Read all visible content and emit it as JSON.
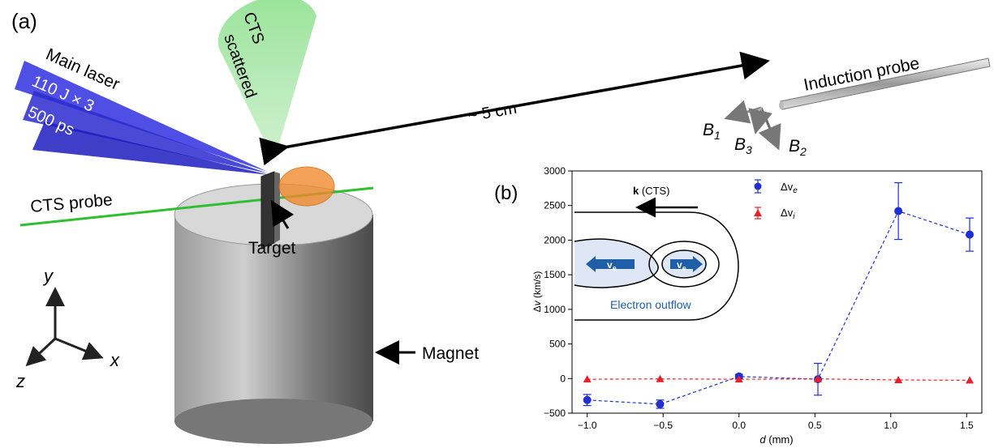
{
  "panel_a": {
    "label": "(a)",
    "main_laser": "Main laser",
    "laser_energy": "110 J × 3",
    "laser_duration": "500 ps",
    "cts_scattered_1": "CTS",
    "cts_scattered_2": "scattered",
    "distance": "~ 5 cm",
    "induction_probe": "Induction probe",
    "b1": "B",
    "b1_sub": "1",
    "b2": "B",
    "b2_sub": "2",
    "b3": "B",
    "b3_sub": "3",
    "cts_probe": "CTS probe",
    "target": "Target",
    "magnet": "Magnet",
    "axis_x": "x",
    "axis_y": "y",
    "axis_z": "z"
  },
  "panel_b": {
    "label": "(b)",
    "inset_k": "k",
    "inset_k_suffix": " (CTS)",
    "inset_ve": "v",
    "inset_ve_sub": "e",
    "inset_outflow": "Electron outflow",
    "legend_e": "Δv",
    "legend_e_sub": "e",
    "legend_i": "Δv",
    "legend_i_sub": "i",
    "ylabel_prefix": "Δ",
    "ylabel_var": "v",
    "ylabel_unit": " (km/s)",
    "xlabel_var": "d",
    "xlabel_unit": " (mm)"
  },
  "colors": {
    "electron": "#1f2fd0",
    "ion": "#e8202a",
    "laser": "#1f2fd0",
    "cts_cone": "#5fd35f",
    "plasma": "#f08a2c"
  },
  "chart_data": {
    "type": "scatter",
    "xlabel": "d (mm)",
    "ylabel": "Δv (km/s)",
    "xlim": [
      -1.1,
      1.6
    ],
    "ylim": [
      -500,
      3000
    ],
    "x_ticks": [
      -1.0,
      -0.5,
      0.0,
      0.5,
      1.0,
      1.5
    ],
    "x_tick_labels": [
      "−1.0",
      "−0.5",
      "0.0",
      "0.5",
      "1.0",
      "1.5"
    ],
    "y_ticks": [
      -500,
      0,
      500,
      1000,
      1500,
      2000,
      2500,
      3000
    ],
    "y_tick_labels": [
      "−500",
      "0",
      "500",
      "1000",
      "1500",
      "2000",
      "2500",
      "3000"
    ],
    "legend_position": "top-center",
    "series": [
      {
        "name": "Δve",
        "marker": "circle",
        "x": [
          -1.0,
          -0.52,
          0.0,
          0.52,
          1.05,
          1.52
        ],
        "y": [
          -310,
          -370,
          30,
          -10,
          2420,
          2080
        ],
        "err": [
          80,
          60,
          30,
          230,
          410,
          240
        ]
      },
      {
        "name": "Δvi",
        "marker": "triangle",
        "x": [
          -1.0,
          -0.52,
          0.0,
          0.52,
          1.05,
          1.52
        ],
        "y": [
          -10,
          -5,
          -10,
          -5,
          -20,
          -25
        ],
        "err": [
          0,
          0,
          0,
          0,
          0,
          0
        ]
      }
    ]
  }
}
